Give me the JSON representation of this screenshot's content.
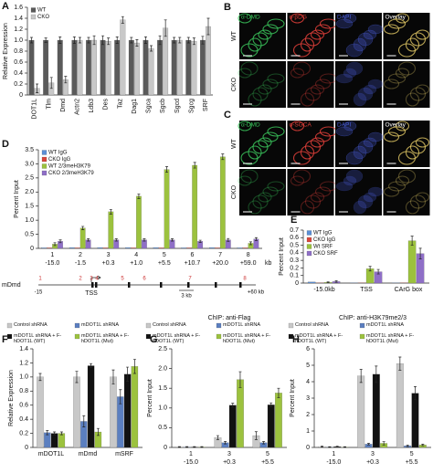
{
  "chart_data": [
    {
      "type": "bar",
      "panel": "A",
      "ylabel": "Relative Expression",
      "categories": [
        "DOT1L",
        "Tlm",
        "Dmd",
        "Actn2",
        "Ldb3",
        "Des",
        "Taz",
        "Dag1",
        "Sgca",
        "Sgcb",
        "Sgcd",
        "Sgcg",
        "SRF"
      ],
      "series": [
        {
          "name": "WT",
          "color": "#5a5a5a",
          "values": [
            1,
            1,
            1,
            1,
            1,
            1,
            1,
            1,
            1,
            1,
            1,
            1,
            1
          ],
          "errors": [
            0.05,
            0.04,
            0.06,
            0.06,
            0.05,
            0.08,
            0.06,
            0.05,
            0.06,
            0.08,
            0.05,
            0.05,
            0.07
          ]
        },
        {
          "name": "CKO",
          "color": "#c8c8c8",
          "values": [
            0.12,
            0.22,
            0.28,
            1.0,
            1.0,
            0.98,
            1.37,
            0.95,
            0.85,
            1.22,
            1.0,
            0.98,
            1.25
          ],
          "errors": [
            0.08,
            0.1,
            0.06,
            0.05,
            0.08,
            0.06,
            0.06,
            0.06,
            0.05,
            0.15,
            0.05,
            0.06,
            0.15
          ]
        }
      ],
      "ylim": [
        0,
        1.6
      ],
      "yticks": [
        0,
        0.2,
        0.4,
        0.6,
        0.8,
        {
          "value": 1,
          "label": "1.0"
        },
        1.2,
        1.4,
        1.6
      ]
    },
    {
      "type": "bar",
      "panel": "D",
      "ylabel": "Percent Input",
      "categories": [
        "1",
        "2",
        "3",
        "4",
        "5",
        "6",
        "7",
        "8"
      ],
      "sublabels": [
        "-15.0",
        "-1.5",
        "+0.3",
        "+1.0",
        "+5.5",
        "+10.7",
        "+20.0",
        "+59.0"
      ],
      "x_unit": "kb",
      "series": [
        {
          "name": "WT IgG",
          "color": "#5b8fd6",
          "values": [
            0.02,
            0.03,
            0.03,
            0.03,
            0.03,
            0.02,
            0.03,
            0.02
          ]
        },
        {
          "name": "CKO IgG",
          "color": "#d9453a",
          "values": [
            0.02,
            0.02,
            0.02,
            0.02,
            0.02,
            0.02,
            0.02,
            0.02
          ]
        },
        {
          "name": "WT 2/3meH3K79",
          "color": "#9cc23e",
          "values": [
            0.15,
            0.72,
            1.3,
            1.85,
            2.8,
            2.95,
            3.25,
            0.18
          ],
          "errors": [
            0.05,
            0.06,
            0.08,
            0.08,
            0.1,
            0.1,
            0.1,
            0.05
          ]
        },
        {
          "name": "CKO 2/3meH3K79",
          "color": "#8f6fc7",
          "values": [
            0.25,
            0.3,
            0.3,
            0.3,
            0.3,
            0.25,
            0.3,
            0.33
          ],
          "errors": [
            0.05,
            0.04,
            0.04,
            0.04,
            0.04,
            0.04,
            0.05,
            0.05
          ]
        }
      ],
      "ylim": [
        0,
        3.5
      ],
      "yticks": [
        0,
        0.5,
        {
          "value": 1,
          "label": "1.0"
        },
        1.5,
        {
          "value": 2,
          "label": "2.0"
        },
        2.5,
        {
          "value": 3,
          "label": "3.0"
        },
        3.5
      ],
      "gene_map": {
        "label": "mDmd",
        "start": "-15",
        "end": "+60 kb",
        "tss": "TSS",
        "scale": "3 kb"
      }
    },
    {
      "type": "bar",
      "panel": "E",
      "ylabel": "Percent Input",
      "categories": [
        "-15.0kb",
        "TSS",
        "CArG box"
      ],
      "series": [
        {
          "name": "WT IgG",
          "color": "#5b8fd6",
          "values": [
            0.015,
            0.005,
            0.005
          ]
        },
        {
          "name": "CKO IgG",
          "color": "#d9453a",
          "values": [
            0.005,
            0.005,
            0.005
          ]
        },
        {
          "name": "Wt SRF",
          "color": "#9cc23e",
          "values": [
            0.01,
            0.19,
            0.56
          ],
          "errors": [
            0.005,
            0.03,
            0.06
          ]
        },
        {
          "name": "CKO SRF",
          "color": "#8f6fc7",
          "values": [
            0.02,
            0.15,
            0.39
          ],
          "errors": [
            0.01,
            0.03,
            0.07
          ]
        }
      ],
      "ylim": [
        0,
        0.7
      ],
      "yticks": [
        0,
        0.1,
        0.2,
        0.3,
        0.4,
        0.5,
        0.6,
        0.7
      ]
    },
    {
      "type": "bar",
      "panel": "F",
      "ylabel": "Relative Expression",
      "categories": [
        "mDOT1L",
        "mDmd",
        "mSRF"
      ],
      "series": [
        {
          "name": "Control shRNA",
          "color": "#c8c8c8",
          "values": [
            1,
            1,
            1
          ],
          "errors": [
            0.05,
            0.08,
            0.1
          ]
        },
        {
          "name": "mDOT1L shRNA",
          "color": "#5b7fc0",
          "values": [
            0.21,
            0.37,
            0.72
          ],
          "errors": [
            0.03,
            0.08,
            0.1
          ]
        },
        {
          "name": "mDOT1L shRNA + F-hDOT1L (WT)",
          "color": "#111111",
          "values": [
            0.2,
            1.16,
            1.04
          ],
          "errors": [
            0.02,
            0.03,
            0.1
          ]
        },
        {
          "name": "mDOT1L shRNA + F-hDOT1L (Mut)",
          "color": "#9cc23e",
          "values": [
            0.2,
            0.22,
            1.15
          ],
          "errors": [
            0.02,
            0.05,
            0.1
          ]
        }
      ],
      "ylim": [
        0,
        1.4
      ],
      "yticks": [
        0,
        0.2,
        0.4,
        0.6,
        0.8,
        {
          "value": 1,
          "label": "1.0"
        },
        1.2,
        1.4
      ]
    },
    {
      "type": "bar",
      "panel": "G",
      "title": "ChIP: anti-Flag",
      "ylabel": "Percent Input",
      "categories": [
        "1",
        "3",
        "5"
      ],
      "sublabels": [
        "-15.0",
        "+0.3",
        "+5.5"
      ],
      "series": [
        {
          "name": "Control shRNA",
          "color": "#c8c8c8",
          "values": [
            0.01,
            0.25,
            0.3
          ],
          "errors": [
            0.01,
            0.05,
            0.1
          ]
        },
        {
          "name": "mDOT1L shRNA",
          "color": "#5b7fc0",
          "values": [
            0.01,
            0.12,
            0.12
          ],
          "errors": [
            0.01,
            0.03,
            0.03
          ]
        },
        {
          "name": "mDOT1L shRNA + F-hDOT1L (WT)",
          "color": "#111111",
          "values": [
            0.01,
            1.07,
            1.08
          ],
          "errors": [
            0.01,
            0.05,
            0.05
          ]
        },
        {
          "name": "mDOT1L shRNA + F-hDOT1L (Mut)",
          "color": "#9cc23e",
          "values": [
            0.01,
            1.72,
            1.38
          ],
          "errors": [
            0.01,
            0.2,
            0.12
          ]
        }
      ],
      "ylim": [
        0,
        2.5
      ],
      "yticks": [
        0,
        0.5,
        {
          "value": 1,
          "label": "1.0"
        },
        1.5,
        {
          "value": 2,
          "label": "2.0"
        },
        2.5
      ]
    },
    {
      "type": "bar",
      "panel": "H",
      "title": "ChIP: anti-H3K79me2/3",
      "ylabel": "Percent Input",
      "categories": [
        "1",
        "3",
        "5"
      ],
      "sublabels": [
        "-15.0",
        "+0.3",
        "+5.5"
      ],
      "series": [
        {
          "name": "Control shRNA",
          "color": "#c8c8c8",
          "values": [
            0.05,
            4.35,
            5.1
          ],
          "errors": [
            0.03,
            0.4,
            0.4
          ]
        },
        {
          "name": "mDOT1L shRNA",
          "color": "#5b7fc0",
          "values": [
            0.02,
            0.2,
            0.1
          ],
          "errors": [
            0.02,
            0.05,
            0.05
          ]
        },
        {
          "name": "mDOT1L shRNA + F-hDOT1L (WT)",
          "color": "#111111",
          "values": [
            0.05,
            4.45,
            3.3
          ],
          "errors": [
            0.03,
            0.5,
            0.4
          ]
        },
        {
          "name": "mDOT1L shRNA + F-hDOT1L (Mut)",
          "color": "#9cc23e",
          "values": [
            0.02,
            0.25,
            0.15
          ],
          "errors": [
            0.02,
            0.1,
            0.05
          ]
        }
      ],
      "ylim": [
        0,
        6
      ],
      "yticks": [
        0,
        1,
        2,
        3,
        4,
        5,
        6
      ]
    }
  ],
  "images": [
    {
      "panel": "B",
      "columns": [
        "α-DMD",
        "α-βDG",
        "DAPI",
        "Overlay"
      ],
      "rows": [
        "WT",
        "CKO"
      ]
    },
    {
      "panel": "C",
      "columns": [
        "α-DMD",
        "α-SGCA",
        "DAPI",
        "Overlay"
      ],
      "rows": [
        "WT",
        "CKO"
      ]
    }
  ]
}
